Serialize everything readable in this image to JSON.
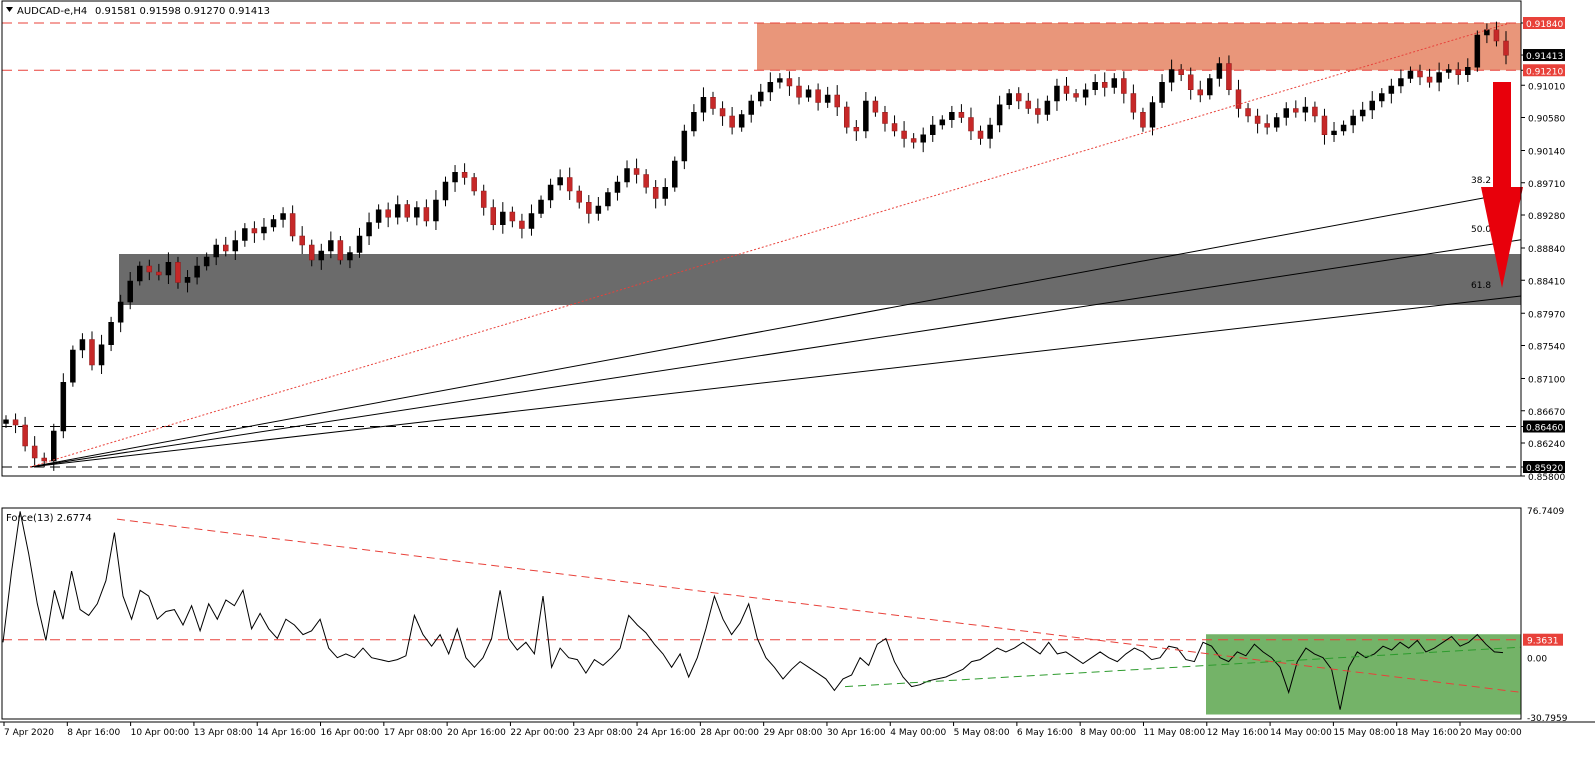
{
  "chart_data": [
    {
      "type": "candlestick",
      "symbol_header": "AUDCAD-e,H4",
      "ohlc_header": "0.91581 0.91598 0.91270 0.91413",
      "ylim": [
        0.858,
        0.9204
      ],
      "y_ticks": [
        "0.91840",
        "0.91413",
        "0.91210",
        "0.91010",
        "0.90580",
        "0.90140",
        "0.89710",
        "0.89280",
        "0.88840",
        "0.88410",
        "0.87970",
        "0.87540",
        "0.87100",
        "0.86670",
        "0.86460",
        "0.86240",
        "0.85920",
        "0.85800"
      ],
      "highlighted_levels": [
        {
          "label": "0.91840",
          "value": 0.9184,
          "style": "red-dashed",
          "bg": "#e8413a"
        },
        {
          "label": "0.91413",
          "value": 0.91413,
          "style": "current-price",
          "bg": "#000000"
        },
        {
          "label": "0.91210",
          "value": 0.9121,
          "style": "red-dashed",
          "bg": "#e8413a"
        },
        {
          "label": "0.86460",
          "value": 0.8646,
          "style": "black-dashed",
          "bg": "#000000"
        },
        {
          "label": "0.85920",
          "value": 0.8592,
          "style": "black-dashed",
          "bg": "#000000"
        }
      ],
      "zones": [
        {
          "name": "resistance",
          "from": 0.9121,
          "to": 0.9184,
          "color": "#e9967a"
        },
        {
          "name": "support",
          "from": 0.8808,
          "to": 0.8876,
          "color": "#6b6b6b"
        }
      ],
      "fib_fan_labels": [
        "38.2",
        "50.0",
        "61.8"
      ],
      "fib_fan": [
        {
          "label": "38.2",
          "end_value": 0.896
        },
        {
          "label": "50.0",
          "end_value": 0.8895
        },
        {
          "label": "61.8",
          "end_value": 0.882
        }
      ],
      "x_tick_labels": [
        "7 Apr 2020",
        "8 Apr 16:00",
        "10 Apr 00:00",
        "13 Apr 08:00",
        "14 Apr 16:00",
        "16 Apr 00:00",
        "17 Apr 08:00",
        "20 Apr 16:00",
        "22 Apr 00:00",
        "23 Apr 08:00",
        "24 Apr 16:00",
        "28 Apr 00:00",
        "29 Apr 08:00",
        "30 Apr 16:00",
        "4 May 00:00",
        "5 May 08:00",
        "6 May 16:00",
        "8 May 00:00",
        "11 May 08:00",
        "12 May 16:00",
        "14 May 00:00",
        "15 May 08:00",
        "18 May 16:00",
        "20 May 00:00"
      ],
      "closes": [
        0.8655,
        0.8648,
        0.862,
        0.8604,
        0.86,
        0.864,
        0.8705,
        0.8748,
        0.8762,
        0.8728,
        0.8755,
        0.8785,
        0.8812,
        0.884,
        0.886,
        0.8852,
        0.8848,
        0.8865,
        0.8838,
        0.8845,
        0.886,
        0.8872,
        0.8888,
        0.888,
        0.8894,
        0.891,
        0.8904,
        0.8912,
        0.8922,
        0.893,
        0.89,
        0.8888,
        0.8868,
        0.888,
        0.8894,
        0.8868,
        0.8878,
        0.89,
        0.8918,
        0.8935,
        0.8925,
        0.8942,
        0.8925,
        0.8938,
        0.892,
        0.8948,
        0.8972,
        0.8985,
        0.8978,
        0.896,
        0.8938,
        0.8915,
        0.8932,
        0.892,
        0.891,
        0.893,
        0.8948,
        0.8968,
        0.8978,
        0.896,
        0.8945,
        0.893,
        0.894,
        0.8958,
        0.8972,
        0.899,
        0.8982,
        0.8965,
        0.895,
        0.8965,
        0.9,
        0.904,
        0.9065,
        0.9085,
        0.907,
        0.906,
        0.9045,
        0.9062,
        0.908,
        0.9092,
        0.9105,
        0.911,
        0.91,
        0.9085,
        0.9095,
        0.9078,
        0.9088,
        0.9072,
        0.9045,
        0.904,
        0.908,
        0.9065,
        0.905,
        0.904,
        0.903,
        0.9025,
        0.9035,
        0.9048,
        0.9055,
        0.9065,
        0.9058,
        0.904,
        0.903,
        0.9048,
        0.9075,
        0.909,
        0.908,
        0.907,
        0.9062,
        0.908,
        0.91,
        0.909,
        0.9085,
        0.9095,
        0.9105,
        0.9098,
        0.911,
        0.909,
        0.9065,
        0.9045,
        0.9078,
        0.9105,
        0.9122,
        0.9115,
        0.9095,
        0.9088,
        0.911,
        0.913,
        0.9095,
        0.907,
        0.906,
        0.905,
        0.9045,
        0.9058,
        0.907,
        0.9065,
        0.9072,
        0.906,
        0.9035,
        0.904,
        0.9048,
        0.906,
        0.9068,
        0.908,
        0.909,
        0.91,
        0.911,
        0.912,
        0.9112,
        0.9105,
        0.9118,
        0.9122,
        0.9115,
        0.9125,
        0.9168,
        0.9175,
        0.916,
        0.9141
      ]
    },
    {
      "type": "line",
      "indicator_header": "Force(13) 2.6774",
      "ylim": [
        -30.7959,
        76.7409
      ],
      "y_ticks": [
        "76.7409",
        "9.3631",
        "0.00",
        "-30.7959"
      ],
      "highlighted_levels": [
        {
          "label": "9.3631",
          "value": 9.3631,
          "bg": "#e8413a"
        }
      ],
      "zones": [
        {
          "name": "breakout-zone",
          "from": -29.5,
          "to": 12.2,
          "color": "#74b368"
        }
      ],
      "values": [
        8,
        45,
        76,
        54,
        28,
        9,
        35,
        20,
        45,
        25,
        22,
        28,
        40,
        65,
        32,
        20,
        35,
        32,
        20,
        24,
        25,
        17,
        27,
        14,
        28,
        20,
        30,
        27,
        35,
        15,
        23,
        15,
        10,
        20,
        17,
        12,
        14,
        20,
        5,
        0,
        2,
        0,
        5,
        0,
        -1,
        -2,
        -1,
        1,
        22,
        12,
        6,
        12,
        2,
        15,
        0,
        -5,
        0,
        10,
        35,
        10,
        4,
        8,
        2,
        32,
        -5,
        5,
        0,
        -1,
        -8,
        -1,
        -4,
        0,
        5,
        22,
        17,
        13,
        7,
        2,
        -5,
        2,
        -10,
        0,
        15,
        32,
        20,
        12,
        18,
        28,
        10,
        0,
        -5,
        -11,
        -6,
        -2,
        -5,
        -8,
        -11,
        -17,
        -11,
        -9,
        0,
        -4,
        7,
        10,
        -2,
        -10,
        -15,
        -14,
        -12,
        -11,
        -10,
        -8,
        -6,
        -2,
        -1,
        2,
        5,
        3,
        5,
        8,
        5,
        2,
        8,
        2,
        3,
        0,
        -3,
        0,
        3,
        0,
        -2,
        2,
        5,
        3,
        -1,
        0,
        6,
        5,
        -1,
        -2,
        8,
        6,
        0,
        -2,
        3,
        1,
        7,
        3,
        0,
        -5,
        -18,
        -2,
        5,
        2,
        0,
        -6,
        -27,
        -5,
        3,
        0,
        2,
        6,
        4,
        8,
        5,
        9,
        3,
        5,
        8,
        11,
        6,
        8,
        12,
        7,
        3,
        2.6774
      ]
    }
  ]
}
